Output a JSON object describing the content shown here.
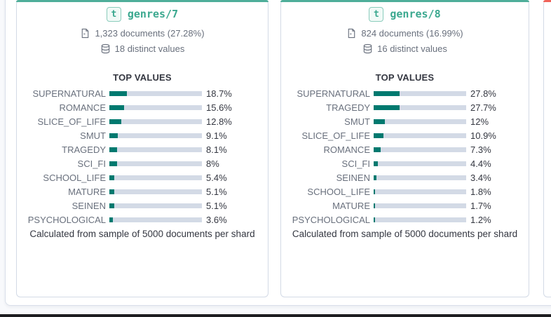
{
  "colors": {
    "teal_accent": "#4fae9a",
    "orange_accent": "#f0635a",
    "bar_fill": "#00796f",
    "bar_track": "#d3dae6"
  },
  "cards": [
    {
      "type_badge": "t",
      "field_name": "genres/7",
      "doc_count": "1,323 documents (27.28%)",
      "distinct_values": "18 distinct values",
      "top_values_title": "TOP VALUES",
      "footer": "Calculated from sample of 5000 documents per shard",
      "top_values": [
        {
          "label": "SUPERNATURAL",
          "pct": 18.7,
          "display": "18.7%"
        },
        {
          "label": "ROMANCE",
          "pct": 15.6,
          "display": "15.6%"
        },
        {
          "label": "SLICE_OF_LIFE",
          "pct": 12.8,
          "display": "12.8%"
        },
        {
          "label": "SMUT",
          "pct": 9.1,
          "display": "9.1%"
        },
        {
          "label": "TRAGEDY",
          "pct": 8.1,
          "display": "8.1%"
        },
        {
          "label": "SCI_FI",
          "pct": 8,
          "display": "8%"
        },
        {
          "label": "SCHOOL_LIFE",
          "pct": 5.4,
          "display": "5.4%"
        },
        {
          "label": "MATURE",
          "pct": 5.1,
          "display": "5.1%"
        },
        {
          "label": "SEINEN",
          "pct": 5.1,
          "display": "5.1%"
        },
        {
          "label": "PSYCHOLOGICAL",
          "pct": 3.6,
          "display": "3.6%"
        }
      ]
    },
    {
      "type_badge": "t",
      "field_name": "genres/8",
      "doc_count": "824 documents (16.99%)",
      "distinct_values": "16 distinct values",
      "top_values_title": "TOP VALUES",
      "footer": "Calculated from sample of 5000 documents per shard",
      "top_values": [
        {
          "label": "SUPERNATURAL",
          "pct": 27.8,
          "display": "27.8%"
        },
        {
          "label": "TRAGEDY",
          "pct": 27.7,
          "display": "27.7%"
        },
        {
          "label": "SMUT",
          "pct": 12,
          "display": "12%"
        },
        {
          "label": "SLICE_OF_LIFE",
          "pct": 10.9,
          "display": "10.9%"
        },
        {
          "label": "ROMANCE",
          "pct": 7.3,
          "display": "7.3%"
        },
        {
          "label": "SCI_FI",
          "pct": 4.4,
          "display": "4.4%"
        },
        {
          "label": "SEINEN",
          "pct": 3.4,
          "display": "3.4%"
        },
        {
          "label": "SCHOOL_LIFE",
          "pct": 1.8,
          "display": "1.8%"
        },
        {
          "label": "MATURE",
          "pct": 1.7,
          "display": "1.7%"
        },
        {
          "label": "PSYCHOLOGICAL",
          "pct": 1.2,
          "display": "1.2%"
        }
      ]
    }
  ]
}
